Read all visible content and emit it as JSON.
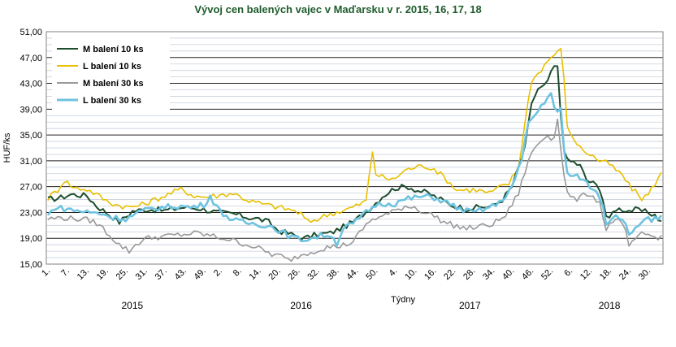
{
  "chart_data": {
    "type": "line",
    "title": "Vývoj cen balených vajec v Maďarsku v r. 2015, 16, 17, 18",
    "ylabel": "HUF/ks",
    "xlabel": "Týdny",
    "ylim": [
      15,
      51
    ],
    "y_ticks": [
      "15,00",
      "19,00",
      "23,00",
      "27,00",
      "31,00",
      "35,00",
      "39,00",
      "43,00",
      "47,00",
      "51,00"
    ],
    "x_ticks": [
      "1.",
      "7.",
      "13.",
      "19.",
      "25.",
      "31.",
      "37.",
      "43.",
      "49.",
      "2.",
      "8.",
      "14.",
      "20.",
      "26.",
      "32.",
      "38.",
      "44.",
      "50.",
      "4.",
      "10.",
      "16.",
      "22.",
      "28.",
      "34.",
      "40.",
      "46.",
      "52.",
      "6.",
      "12.",
      "18.",
      "24.",
      "30."
    ],
    "x_tick_positions": [
      1,
      7,
      13,
      19,
      25,
      31,
      37,
      43,
      49,
      54,
      60,
      66,
      72,
      78,
      84,
      90,
      96,
      102,
      108,
      114,
      120,
      126,
      132,
      138,
      144,
      150,
      156,
      162,
      168,
      174,
      180,
      186
    ],
    "years": [
      {
        "label": "2015",
        "center": 27
      },
      {
        "label": "2016",
        "center": 79
      },
      {
        "label": "2017",
        "center": 131
      },
      {
        "label": "2018",
        "center": 174
      }
    ],
    "weeks_total": 190,
    "grid": true,
    "legend_position": "top-left",
    "series": [
      {
        "name": "M balení 10 ks",
        "color": "#1e4d2e",
        "anchors": [
          [
            1,
            25
          ],
          [
            5,
            25.3
          ],
          [
            8,
            25.8
          ],
          [
            13,
            25.6
          ],
          [
            16,
            24
          ],
          [
            19,
            23
          ],
          [
            23,
            21.5
          ],
          [
            27,
            23.2
          ],
          [
            32,
            23.5
          ],
          [
            37,
            23.3
          ],
          [
            43,
            23.8
          ],
          [
            48,
            23.6
          ],
          [
            53,
            23
          ],
          [
            58,
            22.8
          ],
          [
            63,
            22.2
          ],
          [
            66,
            22
          ],
          [
            69,
            21.5
          ],
          [
            72,
            20.2
          ],
          [
            76,
            19.6
          ],
          [
            80,
            19
          ],
          [
            84,
            19.6
          ],
          [
            88,
            19.8
          ],
          [
            91,
            20.5
          ],
          [
            95,
            21.5
          ],
          [
            100,
            23.5
          ],
          [
            104,
            25.5
          ],
          [
            108,
            26.8
          ],
          [
            112,
            27
          ],
          [
            115,
            26.4
          ],
          [
            118,
            26
          ],
          [
            122,
            25
          ],
          [
            126,
            24
          ],
          [
            130,
            23.6
          ],
          [
            134,
            23.8
          ],
          [
            138,
            24
          ],
          [
            141,
            25
          ],
          [
            144,
            27
          ],
          [
            147,
            31.5
          ],
          [
            148,
            33
          ],
          [
            150,
            40
          ],
          [
            152,
            42
          ],
          [
            154,
            42.5
          ],
          [
            156,
            44.5
          ],
          [
            157,
            45.6
          ],
          [
            158,
            45.4
          ],
          [
            159,
            38
          ],
          [
            160,
            33
          ],
          [
            161,
            31
          ],
          [
            163,
            30.8
          ],
          [
            165,
            30.2
          ],
          [
            167,
            28
          ],
          [
            169,
            27.5
          ],
          [
            171,
            26.8
          ],
          [
            172,
            25
          ],
          [
            173,
            22.5
          ],
          [
            174,
            21.8
          ],
          [
            175,
            23
          ],
          [
            176,
            23.6
          ],
          [
            178,
            23.5
          ],
          [
            180,
            23.3
          ],
          [
            182,
            23.4
          ],
          [
            184,
            23.2
          ],
          [
            186,
            23
          ],
          [
            188,
            22.6
          ],
          [
            190,
            21.5
          ]
        ]
      },
      {
        "name": "L balení 10 ks",
        "color": "#e8c000",
        "anchors": [
          [
            1,
            25.2
          ],
          [
            4,
            26.5
          ],
          [
            6,
            28
          ],
          [
            9,
            26.8
          ],
          [
            13,
            26.6
          ],
          [
            16,
            25.8
          ],
          [
            19,
            24.8
          ],
          [
            22,
            24.2
          ],
          [
            26,
            23.8
          ],
          [
            30,
            24.2
          ],
          [
            34,
            25
          ],
          [
            38,
            25.8
          ],
          [
            42,
            26.6
          ],
          [
            46,
            25.6
          ],
          [
            49,
            25.4
          ],
          [
            53,
            25.6
          ],
          [
            58,
            26
          ],
          [
            63,
            24.8
          ],
          [
            68,
            24.2
          ],
          [
            72,
            23.8
          ],
          [
            76,
            23.4
          ],
          [
            79,
            22.8
          ],
          [
            81,
            21.5
          ],
          [
            84,
            22
          ],
          [
            88,
            22.8
          ],
          [
            92,
            23.3
          ],
          [
            96,
            24
          ],
          [
            99,
            24.8
          ],
          [
            101,
            32.5
          ],
          [
            102,
            29
          ],
          [
            104,
            28.5
          ],
          [
            107,
            28
          ],
          [
            111,
            29.5
          ],
          [
            114,
            30
          ],
          [
            117,
            30.2
          ],
          [
            120,
            29.8
          ],
          [
            124,
            28
          ],
          [
            127,
            26.5
          ],
          [
            130,
            26.5
          ],
          [
            133,
            26.5
          ],
          [
            137,
            26
          ],
          [
            140,
            26.8
          ],
          [
            143,
            27.5
          ],
          [
            146,
            30
          ],
          [
            148,
            37
          ],
          [
            150,
            43.5
          ],
          [
            152,
            44.5
          ],
          [
            155,
            46.5
          ],
          [
            157,
            47.5
          ],
          [
            159,
            48.1
          ],
          [
            160,
            44
          ],
          [
            161,
            36
          ],
          [
            163,
            34.5
          ],
          [
            165,
            33
          ],
          [
            168,
            32
          ],
          [
            171,
            31
          ],
          [
            174,
            30.5
          ],
          [
            176,
            29.5
          ],
          [
            178,
            28.8
          ],
          [
            180,
            27.2
          ],
          [
            182,
            26.2
          ],
          [
            184,
            25.2
          ],
          [
            186,
            25.8
          ],
          [
            188,
            27.5
          ],
          [
            190,
            29
          ]
        ]
      },
      {
        "name": "M balení 30 ks",
        "color": "#999999",
        "anchors": [
          [
            1,
            22
          ],
          [
            5,
            22.2
          ],
          [
            10,
            22
          ],
          [
            14,
            21.8
          ],
          [
            17,
            21
          ],
          [
            20,
            19.5
          ],
          [
            23,
            18
          ],
          [
            26,
            17
          ],
          [
            28,
            18
          ],
          [
            31,
            19
          ],
          [
            35,
            19.2
          ],
          [
            39,
            19.4
          ],
          [
            43,
            19.6
          ],
          [
            47,
            19.8
          ],
          [
            49,
            19.6
          ],
          [
            53,
            19.2
          ],
          [
            57,
            18.8
          ],
          [
            61,
            18.2
          ],
          [
            64,
            17.8
          ],
          [
            67,
            17.2
          ],
          [
            70,
            16.5
          ],
          [
            73,
            16.2
          ],
          [
            75,
            15.6
          ],
          [
            77,
            16
          ],
          [
            80,
            16.6
          ],
          [
            84,
            17.2
          ],
          [
            87,
            17.6
          ],
          [
            91,
            17.8
          ],
          [
            95,
            18.4
          ],
          [
            98,
            20.5
          ],
          [
            101,
            22
          ],
          [
            104,
            22.4
          ],
          [
            107,
            23
          ],
          [
            111,
            24
          ],
          [
            114,
            23.8
          ],
          [
            117,
            23
          ],
          [
            120,
            22.5
          ],
          [
            123,
            21.5
          ],
          [
            126,
            21
          ],
          [
            130,
            20.5
          ],
          [
            134,
            20.8
          ],
          [
            138,
            21.2
          ],
          [
            142,
            22.5
          ],
          [
            146,
            26
          ],
          [
            149,
            31
          ],
          [
            151,
            33
          ],
          [
            153,
            34.2
          ],
          [
            155,
            35
          ],
          [
            156,
            34.6
          ],
          [
            157,
            35
          ],
          [
            158,
            37.3
          ],
          [
            159,
            33
          ],
          [
            160,
            29
          ],
          [
            161,
            26
          ],
          [
            163,
            25
          ],
          [
            165,
            25.2
          ],
          [
            167,
            26
          ],
          [
            169,
            25.5
          ],
          [
            171,
            24.5
          ],
          [
            172,
            22.5
          ],
          [
            173,
            20.2
          ],
          [
            175,
            21.8
          ],
          [
            177,
            21.5
          ],
          [
            179,
            20.2
          ],
          [
            180,
            17.8
          ],
          [
            182,
            18.5
          ],
          [
            184,
            19.8
          ],
          [
            186,
            19.5
          ],
          [
            188,
            19.2
          ],
          [
            190,
            19.2
          ]
        ]
      },
      {
        "name": "L balení 30 ks",
        "color": "#6ec3e0",
        "anchors": [
          [
            1,
            22.5
          ],
          [
            3,
            23.8
          ],
          [
            6,
            23.6
          ],
          [
            10,
            23.3
          ],
          [
            14,
            23
          ],
          [
            18,
            22.8
          ],
          [
            21,
            22.2
          ],
          [
            25,
            22
          ],
          [
            29,
            23
          ],
          [
            33,
            23.6
          ],
          [
            37,
            23.8
          ],
          [
            41,
            24
          ],
          [
            45,
            23.8
          ],
          [
            49,
            24.2
          ],
          [
            51,
            25.5
          ],
          [
            54,
            23.2
          ],
          [
            58,
            21.8
          ],
          [
            62,
            21.4
          ],
          [
            66,
            21.2
          ],
          [
            70,
            20.8
          ],
          [
            73,
            20
          ],
          [
            76,
            19.2
          ],
          [
            79,
            18.8
          ],
          [
            82,
            19
          ],
          [
            85,
            19.4
          ],
          [
            88,
            19.6
          ],
          [
            90,
            18.2
          ],
          [
            92,
            20.6
          ],
          [
            95,
            21.2
          ],
          [
            99,
            23
          ],
          [
            102,
            24.2
          ],
          [
            105,
            24.4
          ],
          [
            108,
            24.4
          ],
          [
            111,
            25
          ],
          [
            114,
            25.3
          ],
          [
            117,
            25.5
          ],
          [
            120,
            25.3
          ],
          [
            124,
            24.5
          ],
          [
            128,
            23.5
          ],
          [
            132,
            23
          ],
          [
            136,
            23.6
          ],
          [
            140,
            24.4
          ],
          [
            144,
            27
          ],
          [
            147,
            31
          ],
          [
            149,
            37
          ],
          [
            151,
            38
          ],
          [
            153,
            39.5
          ],
          [
            155,
            41
          ],
          [
            156,
            41.4
          ],
          [
            157,
            39
          ],
          [
            158,
            38.5
          ],
          [
            159,
            39
          ],
          [
            160,
            33
          ],
          [
            161,
            29
          ],
          [
            163,
            28.5
          ],
          [
            165,
            28.5
          ],
          [
            167,
            27.5
          ],
          [
            169,
            26.6
          ],
          [
            171,
            25.5
          ],
          [
            172,
            24
          ],
          [
            173,
            21.5
          ],
          [
            174,
            21.8
          ],
          [
            176,
            22.8
          ],
          [
            178,
            22
          ],
          [
            180,
            20
          ],
          [
            181,
            19.6
          ],
          [
            183,
            21
          ],
          [
            185,
            22.3
          ],
          [
            187,
            21.8
          ],
          [
            189,
            22
          ],
          [
            190,
            22.2
          ]
        ]
      }
    ]
  }
}
